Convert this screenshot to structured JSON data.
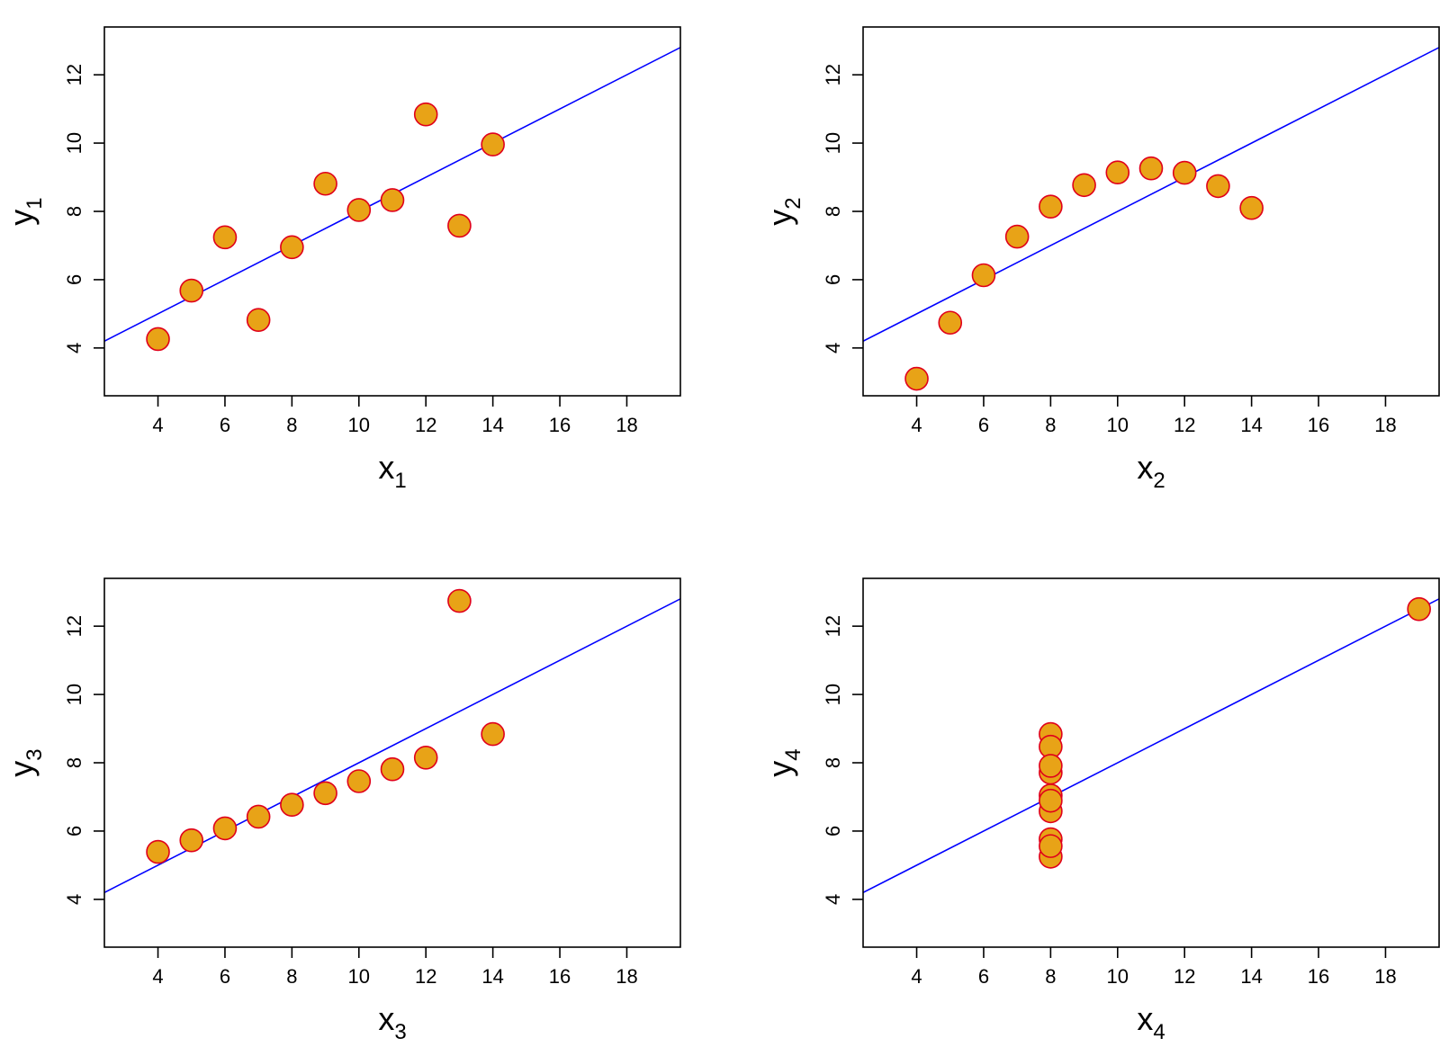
{
  "chart_data": [
    {
      "type": "scatter",
      "xlabel": "x",
      "xlabel_sub": "1",
      "ylabel": "y",
      "ylabel_sub": "1",
      "xlim": [
        2.4,
        19.6
      ],
      "ylim": [
        2.6,
        13.4
      ],
      "xticks": [
        4,
        6,
        8,
        10,
        12,
        14,
        16,
        18
      ],
      "yticks": [
        4,
        6,
        8,
        10,
        12
      ],
      "points": [
        [
          10,
          8.04
        ],
        [
          8,
          6.95
        ],
        [
          13,
          7.58
        ],
        [
          9,
          8.81
        ],
        [
          11,
          8.33
        ],
        [
          14,
          9.96
        ],
        [
          6,
          7.24
        ],
        [
          4,
          4.26
        ],
        [
          12,
          10.84
        ],
        [
          7,
          4.82
        ],
        [
          5,
          5.68
        ]
      ],
      "fit_line": {
        "intercept": 3.0,
        "slope": 0.5
      },
      "grid": false
    },
    {
      "type": "scatter",
      "xlabel": "x",
      "xlabel_sub": "2",
      "ylabel": "y",
      "ylabel_sub": "2",
      "xlim": [
        2.4,
        19.6
      ],
      "ylim": [
        2.6,
        13.4
      ],
      "xticks": [
        4,
        6,
        8,
        10,
        12,
        14,
        16,
        18
      ],
      "yticks": [
        4,
        6,
        8,
        10,
        12
      ],
      "points": [
        [
          10,
          9.14
        ],
        [
          8,
          8.14
        ],
        [
          13,
          8.74
        ],
        [
          9,
          8.77
        ],
        [
          11,
          9.26
        ],
        [
          14,
          8.1
        ],
        [
          6,
          6.13
        ],
        [
          4,
          3.1
        ],
        [
          12,
          9.13
        ],
        [
          7,
          7.26
        ],
        [
          5,
          4.74
        ]
      ],
      "fit_line": {
        "intercept": 3.0,
        "slope": 0.5
      },
      "grid": false
    },
    {
      "type": "scatter",
      "xlabel": "x",
      "xlabel_sub": "3",
      "ylabel": "y",
      "ylabel_sub": "3",
      "xlim": [
        2.4,
        19.6
      ],
      "ylim": [
        2.6,
        13.4
      ],
      "xticks": [
        4,
        6,
        8,
        10,
        12,
        14,
        16,
        18
      ],
      "yticks": [
        4,
        6,
        8,
        10,
        12
      ],
      "points": [
        [
          10,
          7.46
        ],
        [
          8,
          6.77
        ],
        [
          13,
          12.74
        ],
        [
          9,
          7.11
        ],
        [
          11,
          7.81
        ],
        [
          14,
          8.84
        ],
        [
          6,
          6.08
        ],
        [
          4,
          5.39
        ],
        [
          12,
          8.15
        ],
        [
          7,
          6.42
        ],
        [
          5,
          5.73
        ]
      ],
      "fit_line": {
        "intercept": 3.0,
        "slope": 0.5
      },
      "grid": false
    },
    {
      "type": "scatter",
      "xlabel": "x",
      "xlabel_sub": "4",
      "ylabel": "y",
      "ylabel_sub": "4",
      "xlim": [
        2.4,
        19.6
      ],
      "ylim": [
        2.6,
        13.4
      ],
      "xticks": [
        4,
        6,
        8,
        10,
        12,
        14,
        16,
        18
      ],
      "yticks": [
        4,
        6,
        8,
        10,
        12
      ],
      "points": [
        [
          8,
          6.58
        ],
        [
          8,
          5.76
        ],
        [
          8,
          7.71
        ],
        [
          8,
          8.84
        ],
        [
          8,
          8.47
        ],
        [
          8,
          7.04
        ],
        [
          8,
          5.25
        ],
        [
          19,
          12.5
        ],
        [
          8,
          5.56
        ],
        [
          8,
          7.91
        ],
        [
          8,
          6.89
        ]
      ],
      "fit_line": {
        "intercept": 3.0,
        "slope": 0.5
      },
      "grid": false
    }
  ],
  "style": {
    "point_fill": "#E8A317",
    "point_stroke": "#E0001A",
    "line_color": "#0000FF",
    "frame_color": "#000000"
  }
}
